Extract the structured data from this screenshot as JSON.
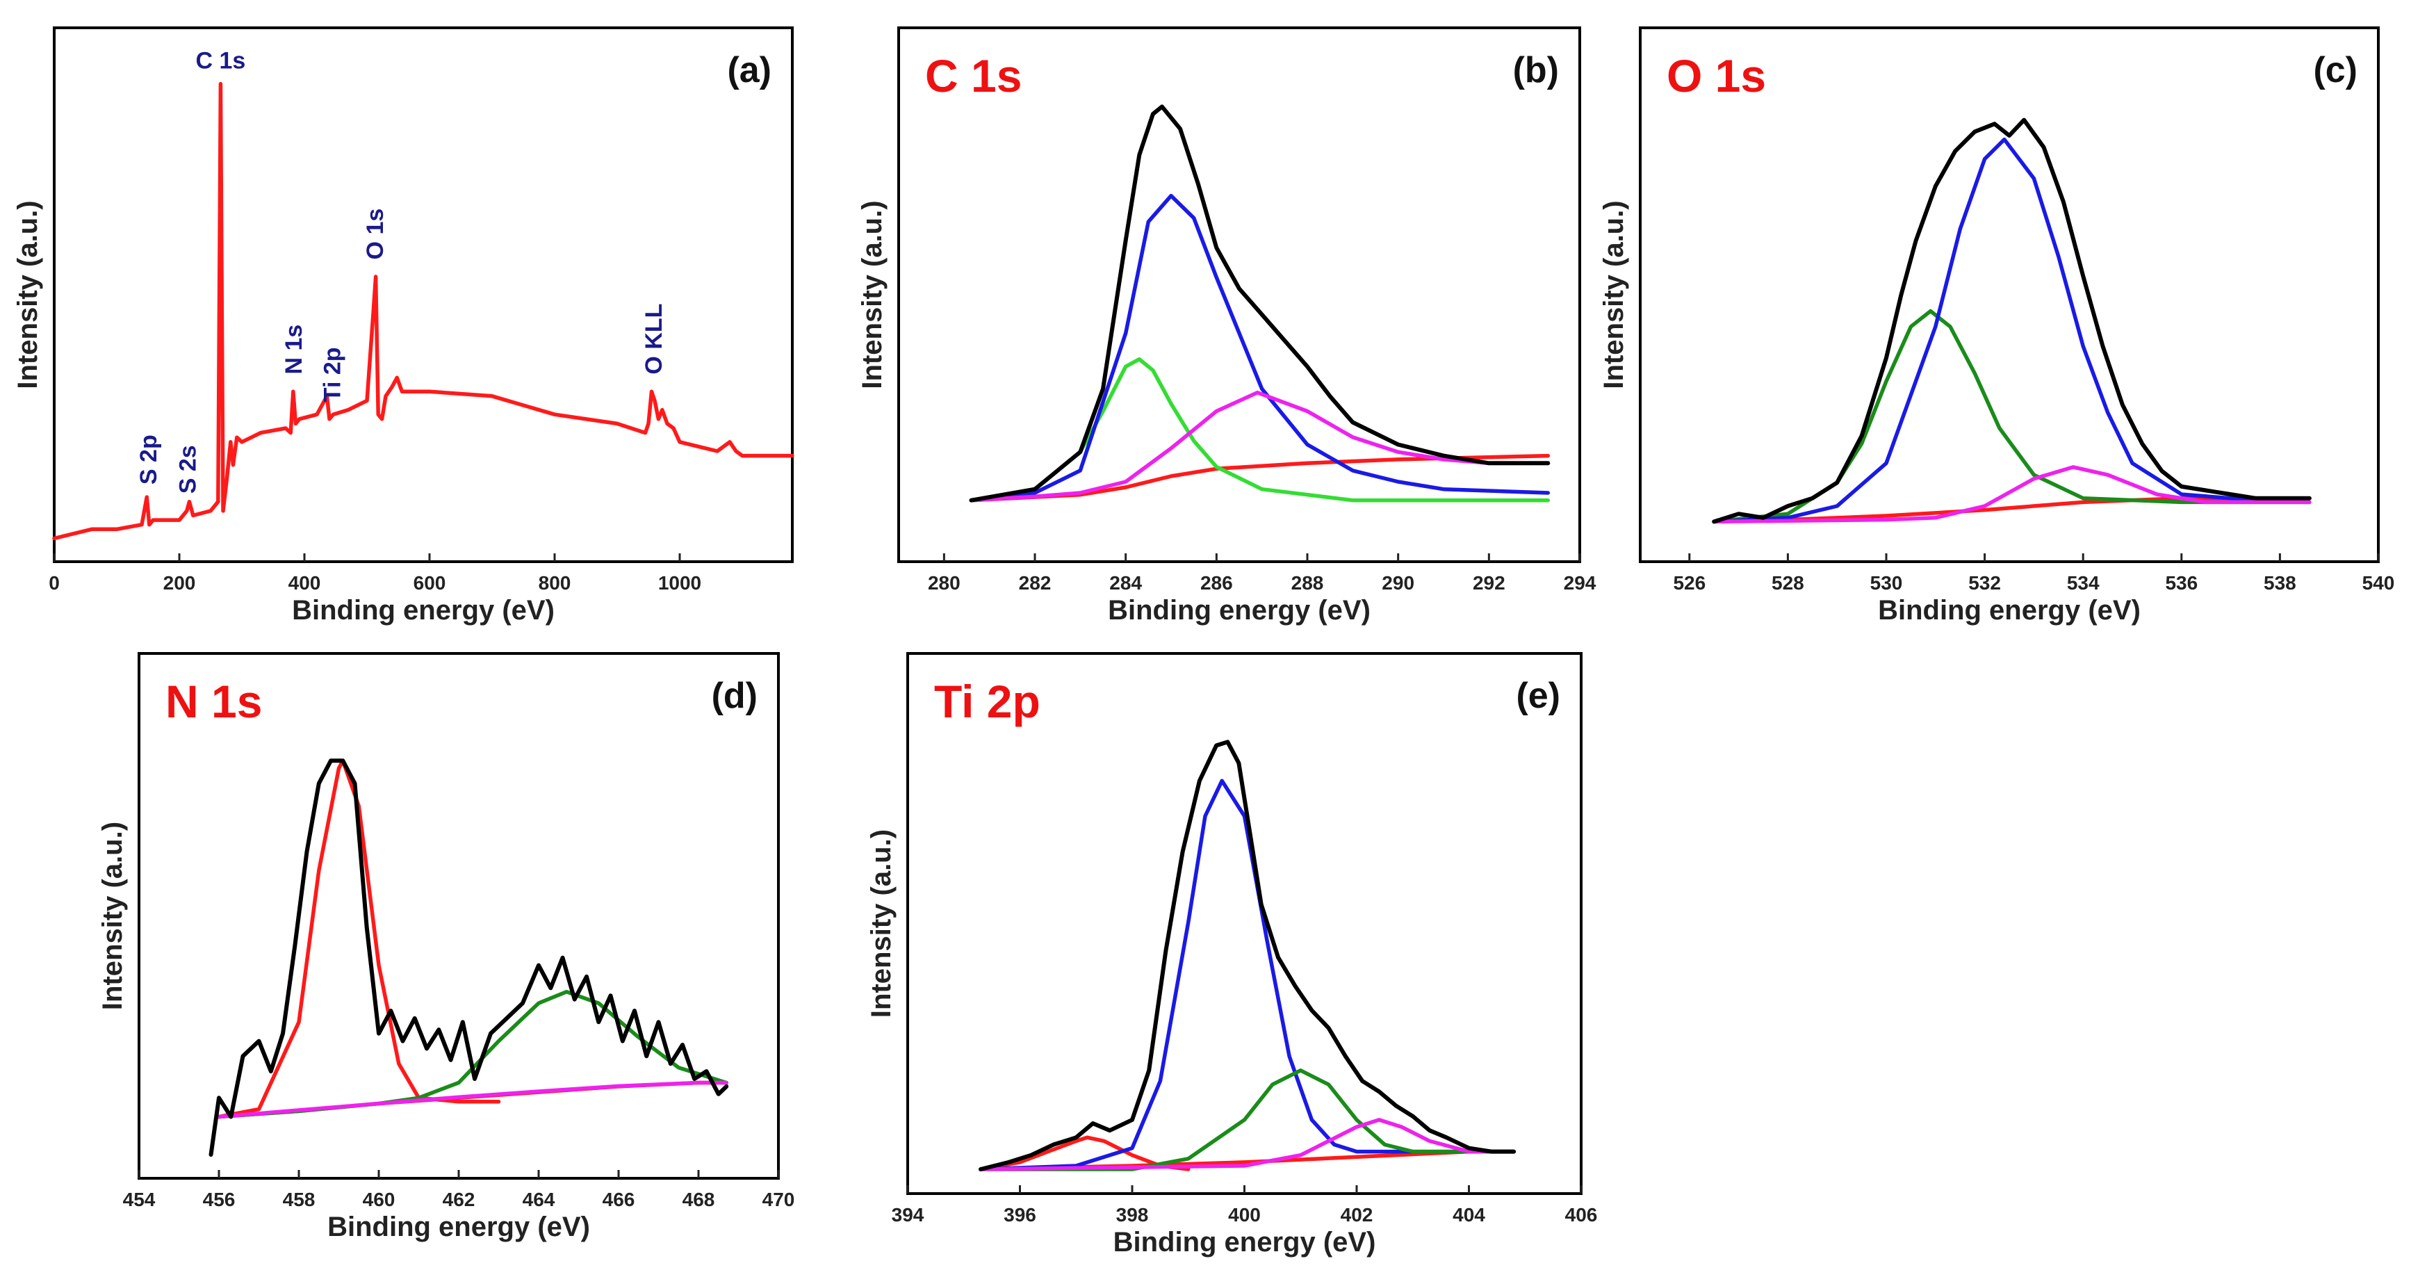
{
  "figure": {
    "background": "#ffffff",
    "frame_color": "#000000",
    "tick_color": "#222222"
  },
  "chart_data": [
    {
      "panel": "a",
      "type": "line",
      "tag": "(a)",
      "title": "",
      "xlabel": "Binding energy (eV)",
      "ylabel": "Intensity (a.u.)",
      "xlim": [
        0,
        1180
      ],
      "ylim": [
        0,
        100
      ],
      "xticks": [
        0,
        200,
        400,
        600,
        800,
        1000
      ],
      "grid": false,
      "series": [
        {
          "name": "survey",
          "color": "#ff1a1a",
          "x": [
            0,
            60,
            100,
            140,
            148,
            152,
            158,
            200,
            212,
            216,
            222,
            250,
            262,
            266,
            270,
            276,
            282,
            286,
            292,
            300,
            330,
            370,
            378,
            382,
            386,
            392,
            420,
            436,
            440,
            446,
            470,
            500,
            510,
            514,
            518,
            524,
            530,
            540,
            548,
            556,
            600,
            700,
            800,
            900,
            945,
            950,
            955,
            960,
            966,
            972,
            980,
            990,
            1000,
            1060,
            1080,
            1090,
            1100,
            1180
          ],
          "y": [
            1,
            3,
            3,
            4,
            10,
            4,
            5,
            5,
            7,
            9,
            6,
            7,
            9,
            100,
            7,
            14,
            22,
            17,
            23,
            22,
            24,
            25,
            24,
            33,
            26,
            27,
            28,
            32,
            27,
            28,
            29,
            31,
            50,
            58,
            28,
            27,
            32,
            34,
            36,
            33,
            33,
            32,
            28,
            26,
            24,
            26,
            33,
            31,
            27,
            29,
            26,
            25,
            22,
            20,
            22,
            20,
            19,
            19
          ]
        }
      ],
      "annotations": [
        {
          "text": "S 2p",
          "x": 150,
          "y": 10,
          "color": "#1a1a8c",
          "rotate": true
        },
        {
          "text": "S 2s",
          "x": 213,
          "y": 8,
          "color": "#1a1a8c",
          "rotate": true
        },
        {
          "text": "C 1s",
          "x": 266,
          "y": 100,
          "color": "#1a1a8c",
          "rotate": false
        },
        {
          "text": "N 1s",
          "x": 382,
          "y": 34,
          "color": "#1a1a8c",
          "rotate": true
        },
        {
          "text": "Ti 2p",
          "x": 444,
          "y": 28,
          "color": "#1a1a8c",
          "rotate": true
        },
        {
          "text": "O 1s",
          "x": 512,
          "y": 59,
          "color": "#1a1a8c",
          "rotate": true
        },
        {
          "text": "O KLL",
          "x": 958,
          "y": 34,
          "color": "#1a1a8c",
          "rotate": true
        }
      ]
    },
    {
      "panel": "b",
      "type": "line",
      "tag": "(b)",
      "title": "C 1s",
      "title_color": "#ee1111",
      "xlabel": "Binding energy (eV)",
      "ylabel": "Intensity (a.u.)",
      "xlim": [
        279,
        294
      ],
      "ylim": [
        0,
        115
      ],
      "xticks": [
        280,
        282,
        284,
        286,
        288,
        290,
        292,
        294
      ],
      "grid": false,
      "series": [
        {
          "name": "baseline",
          "color": "#ff1a1a",
          "x": [
            280.6,
            283,
            284,
            285,
            286,
            288,
            290,
            293.3
          ],
          "y": [
            0,
            1.5,
            3.5,
            6.5,
            8.5,
            10,
            11,
            12
          ]
        },
        {
          "name": "peak-284.3",
          "color": "#33dd33",
          "x": [
            280.6,
            282,
            283,
            283.5,
            284,
            284.3,
            284.6,
            285,
            285.5,
            286,
            287,
            289,
            293.3
          ],
          "y": [
            0,
            3,
            13,
            24,
            36,
            38,
            35,
            26,
            16,
            9,
            3,
            0,
            0
          ]
        },
        {
          "name": "peak-285.0",
          "color": "#1a1ae6",
          "x": [
            280.6,
            282,
            283,
            284,
            284.5,
            285,
            285.5,
            286,
            287,
            288,
            289,
            290,
            291,
            293.3
          ],
          "y": [
            0,
            2,
            8,
            45,
            75,
            82,
            76,
            60,
            30,
            15,
            8,
            5,
            3,
            2
          ]
        },
        {
          "name": "peak-286.9",
          "color": "#ee22ee",
          "x": [
            280.6,
            282,
            283,
            284,
            285,
            286,
            286.9,
            288,
            289,
            290,
            291,
            292,
            293.3
          ],
          "y": [
            0,
            1,
            2,
            5,
            14,
            24,
            29,
            24,
            17,
            13,
            11,
            10,
            10
          ]
        },
        {
          "name": "envelope",
          "color": "#000000",
          "x": [
            280.6,
            282,
            283,
            283.5,
            284,
            284.3,
            284.6,
            284.8,
            285.2,
            285.6,
            286,
            286.5,
            287,
            287.5,
            288,
            288.5,
            289,
            290,
            291,
            292,
            293.3
          ],
          "y": [
            0,
            3,
            13,
            30,
            70,
            93,
            104,
            106,
            100,
            85,
            68,
            57,
            50,
            43,
            36,
            28,
            21,
            15,
            12,
            10,
            10
          ]
        }
      ],
      "annotations": []
    },
    {
      "panel": "c",
      "type": "line",
      "tag": "(c)",
      "title": "O 1s",
      "title_color": "#ee1111",
      "xlabel": "Binding energy (eV)",
      "ylabel": "Intensity (a.u.)",
      "xlim": [
        525,
        540
      ],
      "ylim": [
        0,
        115
      ],
      "xticks": [
        526,
        528,
        530,
        532,
        534,
        536,
        538,
        540
      ],
      "grid": false,
      "series": [
        {
          "name": "baseline",
          "color": "#ff1a1a",
          "x": [
            526.5,
            528,
            530,
            532,
            534,
            536,
            538.6
          ],
          "y": [
            0,
            0.5,
            1.5,
            3,
            5,
            6,
            6
          ]
        },
        {
          "name": "peak-530.9",
          "color": "#1a8c1a",
          "x": [
            526.5,
            528,
            529,
            529.5,
            530,
            530.5,
            530.9,
            531.3,
            531.8,
            532.3,
            533,
            534,
            536,
            538.6
          ],
          "y": [
            0,
            2,
            10,
            20,
            36,
            50,
            54,
            50,
            38,
            24,
            12,
            6,
            5,
            5
          ]
        },
        {
          "name": "peak-532.4",
          "color": "#1a1ae6",
          "x": [
            526.5,
            528,
            529,
            530,
            531,
            531.5,
            532,
            532.4,
            533,
            533.5,
            534,
            534.5,
            535,
            536,
            537,
            538.6
          ],
          "y": [
            0,
            1,
            4,
            15,
            50,
            75,
            93,
            98,
            88,
            68,
            45,
            28,
            15,
            7,
            6,
            6
          ]
        },
        {
          "name": "peak-533.8",
          "color": "#ee22ee",
          "x": [
            526.5,
            530,
            531,
            532,
            533,
            533.8,
            534.5,
            535.5,
            536.5,
            538.6
          ],
          "y": [
            0,
            0.5,
            1,
            4,
            11,
            14,
            12,
            7,
            5,
            5
          ]
        },
        {
          "name": "envelope",
          "color": "#000000",
          "x": [
            526.5,
            527,
            527.5,
            528,
            528.5,
            529,
            529.5,
            530,
            530.3,
            530.6,
            531,
            531.4,
            531.8,
            532.2,
            532.5,
            532.8,
            533.2,
            533.6,
            534,
            534.4,
            534.8,
            535.2,
            535.6,
            536,
            536.5,
            537,
            537.5,
            538,
            538.6
          ],
          "y": [
            0,
            2,
            1,
            4,
            6,
            10,
            22,
            42,
            58,
            72,
            86,
            95,
            100,
            102,
            99,
            103,
            96,
            82,
            63,
            45,
            30,
            20,
            13,
            9,
            8,
            7,
            6,
            6,
            6
          ]
        }
      ],
      "annotations": []
    },
    {
      "panel": "d",
      "type": "line",
      "tag": "(d)",
      "title": "N 1s",
      "title_color": "#ee1111",
      "xlabel": "Binding energy (eV)",
      "ylabel": "Intensity (a.u.)",
      "xlim": [
        454,
        470
      ],
      "ylim": [
        0,
        115
      ],
      "xticks": [
        454,
        456,
        458,
        460,
        462,
        464,
        466,
        468,
        470
      ],
      "grid": false,
      "series": [
        {
          "name": "baseline",
          "color": "#ff1a1a",
          "x": [
            456,
            458,
            460,
            462,
            464,
            466,
            468,
            468.7
          ],
          "y": [
            10,
            11.5,
            13.5,
            15,
            16.5,
            18,
            19,
            19
          ]
        },
        {
          "name": "peak-459.1",
          "color": "#ff1a1a",
          "x": [
            456,
            457,
            458,
            458.5,
            459,
            459.1,
            459.5,
            460,
            460.5,
            461,
            462,
            463
          ],
          "y": [
            10,
            12,
            35,
            75,
            102,
            104,
            92,
            50,
            24,
            15,
            14,
            14
          ]
        },
        {
          "name": "peak-464.7",
          "color": "#1a8c1a",
          "x": [
            456,
            458,
            460,
            461,
            462,
            463,
            464,
            464.7,
            465.5,
            466.5,
            467.5,
            468.7
          ],
          "y": [
            10,
            11.5,
            13.5,
            15,
            19,
            30,
            40,
            43,
            40,
            31,
            23,
            19
          ]
        },
        {
          "name": "baseline-2",
          "color": "#ee22ee",
          "x": [
            456,
            460,
            462,
            464,
            466,
            468,
            468.7
          ],
          "y": [
            10,
            13.5,
            15.2,
            16.7,
            18.1,
            19,
            19
          ]
        },
        {
          "name": "envelope",
          "color": "#000000",
          "x": [
            455.8,
            456,
            456.3,
            456.6,
            457,
            457.3,
            457.6,
            457.9,
            458.2,
            458.5,
            458.8,
            459.1,
            459.4,
            459.7,
            460,
            460.3,
            460.6,
            460.9,
            461.2,
            461.5,
            461.8,
            462.1,
            462.4,
            462.8,
            463.2,
            463.6,
            464,
            464.3,
            464.6,
            464.9,
            465.2,
            465.5,
            465.8,
            466.1,
            466.4,
            466.7,
            467,
            467.3,
            467.6,
            467.9,
            468.2,
            468.5,
            468.7
          ],
          "y": [
            0,
            15,
            10,
            26,
            30,
            22,
            32,
            55,
            80,
            98,
            104,
            104,
            98,
            60,
            32,
            38,
            30,
            36,
            28,
            33,
            25,
            35,
            20,
            32,
            36,
            40,
            50,
            44,
            52,
            41,
            47,
            35,
            42,
            30,
            38,
            26,
            35,
            24,
            29,
            20,
            22,
            16,
            18
          ]
        }
      ],
      "annotations": []
    },
    {
      "panel": "e",
      "type": "line",
      "tag": "(e)",
      "title": "Ti 2p",
      "title_color": "#ee1111",
      "xlabel": "Binding energy (eV)",
      "ylabel": "Intensity (a.u.)",
      "xlim": [
        394,
        406
      ],
      "ylim": [
        0,
        130
      ],
      "xticks": [
        394,
        396,
        398,
        400,
        402,
        404,
        406
      ],
      "grid": false,
      "series": [
        {
          "name": "baseline",
          "color": "#ff1a1a",
          "x": [
            395.3,
            398,
            400,
            402,
            404,
            404.8
          ],
          "y": [
            0,
            1,
            2,
            3.5,
            5,
            5
          ]
        },
        {
          "name": "peak-397.2",
          "color": "#ff1a1a",
          "x": [
            395.3,
            396,
            396.5,
            397,
            397.2,
            397.5,
            398,
            398.5,
            399
          ],
          "y": [
            0,
            2,
            5,
            8,
            9,
            8,
            4,
            1,
            0
          ]
        },
        {
          "name": "peak-399.6",
          "color": "#1a1ae6",
          "x": [
            395.3,
            397,
            398,
            398.5,
            399,
            399.3,
            399.6,
            400,
            400.4,
            400.8,
            401.2,
            401.6,
            402,
            403,
            404.8
          ],
          "y": [
            0,
            1,
            6,
            25,
            70,
            100,
            110,
            100,
            65,
            32,
            14,
            7,
            5,
            5,
            5
          ]
        },
        {
          "name": "peak-401.0",
          "color": "#1a8c1a",
          "x": [
            395.3,
            398,
            399,
            400,
            400.5,
            401,
            401.5,
            402,
            402.5,
            403,
            404,
            404.8
          ],
          "y": [
            0,
            0,
            3,
            14,
            24,
            28,
            24,
            14,
            7,
            5,
            5,
            5
          ]
        },
        {
          "name": "peak-402.4",
          "color": "#ee22ee",
          "x": [
            395.3,
            400,
            401,
            401.5,
            402,
            402.4,
            402.8,
            403.3,
            404,
            404.8
          ],
          "y": [
            0,
            1,
            4,
            8,
            12,
            14,
            12,
            8,
            5,
            5
          ]
        },
        {
          "name": "envelope",
          "color": "#000000",
          "x": [
            395.3,
            395.8,
            396.2,
            396.6,
            397,
            397.3,
            397.6,
            398,
            398.3,
            398.6,
            398.9,
            399.2,
            399.5,
            399.7,
            399.9,
            400.1,
            400.3,
            400.6,
            400.9,
            401.2,
            401.5,
            401.8,
            402.1,
            402.4,
            402.7,
            403,
            403.3,
            403.6,
            404,
            404.4,
            404.8
          ],
          "y": [
            0,
            2,
            4,
            7,
            9,
            13,
            11,
            14,
            28,
            62,
            90,
            110,
            120,
            121,
            115,
            95,
            75,
            60,
            52,
            45,
            40,
            32,
            25,
            22,
            18,
            15,
            11,
            9,
            6,
            5,
            5
          ]
        }
      ],
      "annotations": []
    }
  ]
}
